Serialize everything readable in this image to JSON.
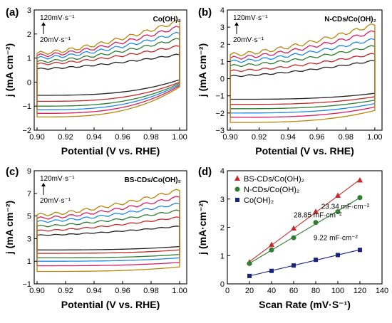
{
  "chart_data": [
    {
      "panel": "(a)",
      "type": "line",
      "label": "Co(OH)₂",
      "xlabel": "Potential (V vs. RHE)",
      "ylabel": "j (mA cm⁻²)",
      "xlim": [
        0.898,
        1.005
      ],
      "ylim": [
        -2,
        3
      ],
      "xticks": [
        "0.90",
        "0.92",
        "0.94",
        "0.96",
        "0.98",
        "1.00"
      ],
      "xtick_values": [
        0.9,
        0.92,
        0.94,
        0.96,
        0.98,
        1.0
      ],
      "yticks": [
        "−2",
        "−1",
        "0",
        "1",
        "2",
        "3"
      ],
      "ytick_values": [
        -2,
        -1,
        0,
        1,
        2,
        3
      ],
      "annotation_top": "120mV·s⁻¹",
      "annotation_bottom": "20mV·s⁻¹",
      "scan_rates_mV_s": [
        20,
        40,
        60,
        80,
        100,
        120
      ],
      "series_colors": [
        "#222222",
        "#c62828",
        "#2e7d32",
        "#1e88e5",
        "#d81b60",
        "#b8860b"
      ],
      "series": [
        {
          "scan_rate": 20,
          "upper_start": 0.55,
          "upper_end": 1.15,
          "lower_start": -0.55,
          "lower_end": 0.1
        },
        {
          "scan_rate": 40,
          "upper_start": 0.75,
          "upper_end": 1.5,
          "lower_start": -0.8,
          "lower_end": 0.0
        },
        {
          "scan_rate": 60,
          "upper_start": 0.85,
          "upper_end": 1.8,
          "lower_start": -1.0,
          "lower_end": -0.05
        },
        {
          "scan_rate": 80,
          "upper_start": 1.0,
          "upper_end": 2.05,
          "lower_start": -1.15,
          "lower_end": -0.1
        },
        {
          "scan_rate": 100,
          "upper_start": 1.1,
          "upper_end": 2.3,
          "lower_start": -1.3,
          "lower_end": -0.15
        },
        {
          "scan_rate": 120,
          "upper_start": 1.2,
          "upper_end": 2.55,
          "lower_start": -1.45,
          "lower_end": -0.2
        }
      ]
    },
    {
      "panel": "(b)",
      "type": "line",
      "label": "N-CDs/Co(OH)₂",
      "xlabel": "Potential (V vs. RHE)",
      "ylabel": "j (mA cm⁻²)",
      "xlim": [
        0.898,
        1.005
      ],
      "ylim": [
        -3,
        4
      ],
      "xticks": [
        "0.90",
        "0.92",
        "0.94",
        "0.96",
        "0.98",
        "1.00"
      ],
      "xtick_values": [
        0.9,
        0.92,
        0.94,
        0.96,
        0.98,
        1.0
      ],
      "yticks": [
        "−3",
        "−2",
        "−1",
        "0",
        "1",
        "2",
        "3",
        "4"
      ],
      "ytick_values": [
        -3,
        -2,
        -1,
        0,
        1,
        2,
        3,
        4
      ],
      "annotation_top": "120mV·s⁻¹",
      "annotation_bottom": "20mV·s⁻¹",
      "scan_rates_mV_s": [
        20,
        40,
        60,
        80,
        100,
        120
      ],
      "series_colors": [
        "#222222",
        "#c62828",
        "#2e7d32",
        "#1e88e5",
        "#d81b60",
        "#b8860b"
      ],
      "series": [
        {
          "scan_rate": 20,
          "upper_start": 0.15,
          "upper_end": 1.05,
          "lower_start": -1.2,
          "lower_end": -0.85
        },
        {
          "scan_rate": 40,
          "upper_start": 0.45,
          "upper_end": 1.45,
          "lower_start": -1.5,
          "lower_end": -1.05
        },
        {
          "scan_rate": 60,
          "upper_start": 0.75,
          "upper_end": 1.9,
          "lower_start": -1.75,
          "lower_end": -1.25
        },
        {
          "scan_rate": 80,
          "upper_start": 1.0,
          "upper_end": 2.3,
          "lower_start": -2.0,
          "lower_end": -1.45
        },
        {
          "scan_rate": 100,
          "upper_start": 1.2,
          "upper_end": 2.75,
          "lower_start": -2.25,
          "lower_end": -1.65
        },
        {
          "scan_rate": 120,
          "upper_start": 1.4,
          "upper_end": 3.15,
          "lower_start": -2.55,
          "lower_end": -1.85
        }
      ]
    },
    {
      "panel": "(c)",
      "type": "line",
      "label": "BS-CDs/Co(OH)₂",
      "xlabel": "Potential (V vs. RHE)",
      "ylabel": "j (mA cm⁻²)",
      "xlim": [
        0.898,
        1.005
      ],
      "ylim": [
        -1,
        9
      ],
      "xticks": [
        "0.90",
        "0.92",
        "0.94",
        "0.96",
        "0.98",
        "1.00"
      ],
      "xtick_values": [
        0.9,
        0.92,
        0.94,
        0.96,
        0.98,
        1.0
      ],
      "yticks": [
        "−1",
        "1",
        "3",
        "5",
        "7",
        "9"
      ],
      "ytick_values": [
        -1,
        1,
        3,
        5,
        7,
        9
      ],
      "annotation_top": "120mV·s⁻¹",
      "annotation_bottom": "20mV·s⁻¹",
      "scan_rates_mV_s": [
        20,
        40,
        60,
        80,
        100,
        120
      ],
      "series_colors": [
        "#222222",
        "#c62828",
        "#2e7d32",
        "#1e88e5",
        "#d81b60",
        "#b8860b"
      ],
      "series": [
        {
          "scan_rate": 20,
          "upper_start": 3.3,
          "upper_end": 4.1,
          "lower_start": 2.0,
          "lower_end": 2.3
        },
        {
          "scan_rate": 40,
          "upper_start": 3.7,
          "upper_end": 4.9,
          "lower_start": 1.7,
          "lower_end": 2.0
        },
        {
          "scan_rate": 60,
          "upper_start": 4.1,
          "upper_end": 5.5,
          "lower_start": 1.3,
          "lower_end": 1.6
        },
        {
          "scan_rate": 80,
          "upper_start": 4.5,
          "upper_end": 6.1,
          "lower_start": 1.0,
          "lower_end": 1.3
        },
        {
          "scan_rate": 100,
          "upper_start": 4.8,
          "upper_end": 6.7,
          "lower_start": 0.6,
          "lower_end": 0.9
        },
        {
          "scan_rate": 120,
          "upper_start": 5.1,
          "upper_end": 7.3,
          "lower_start": 0.1,
          "lower_end": 0.5
        }
      ]
    },
    {
      "panel": "(d)",
      "type": "scatter",
      "xlabel": "Scan Rate (mV·S⁻¹)",
      "ylabel": "j (mA·cm⁻²)",
      "xlim": [
        0,
        140
      ],
      "ylim": [
        0,
        4
      ],
      "xticks": [
        "0",
        "20",
        "40",
        "60",
        "80",
        "100",
        "120",
        "140"
      ],
      "xtick_values": [
        0,
        20,
        40,
        60,
        80,
        100,
        120,
        140
      ],
      "yticks": [
        "0",
        "1",
        "2",
        "3",
        "4"
      ],
      "ytick_values": [
        0,
        1,
        2,
        3,
        4
      ],
      "legend_position": "top-left",
      "x": [
        20,
        40,
        60,
        80,
        100,
        120
      ],
      "series": [
        {
          "name": "BS-CDs/Co(OH)₂",
          "color": "#c62828",
          "marker": "triangle",
          "values": [
            0.76,
            1.38,
            1.96,
            2.55,
            3.12,
            3.66
          ],
          "slope_label": "28.85 mF·cm⁻²"
        },
        {
          "name": "N-CDs/Co(OH)₂",
          "color": "#2e7d32",
          "marker": "circle",
          "values": [
            0.72,
            1.2,
            1.63,
            2.17,
            2.55,
            3.05
          ],
          "slope_label": "23.34 mF·cm⁻²"
        },
        {
          "name": "Co(OH)₂",
          "color": "#1a237e",
          "marker": "square",
          "values": [
            0.28,
            0.46,
            0.65,
            0.85,
            1.02,
            1.2
          ],
          "slope_label": "9.22 mF·cm⁻²"
        }
      ]
    }
  ]
}
